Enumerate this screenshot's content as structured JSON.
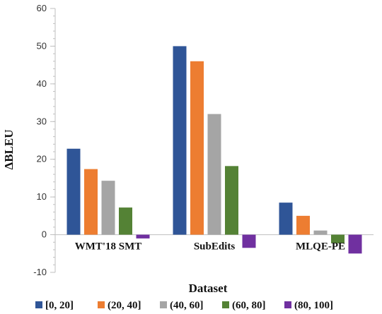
{
  "chart_data": {
    "type": "bar",
    "title": "",
    "xlabel": "Dataset",
    "ylabel": "ΔBLEU",
    "categories": [
      "WMT'18 SMT",
      "SubEdits",
      "MLQE-PE"
    ],
    "ylim": [
      -10,
      60
    ],
    "yticks": [
      "-10",
      "0",
      "10",
      "20",
      "30",
      "40",
      "50",
      "60"
    ],
    "grid": false,
    "legend_position": "bottom",
    "series": [
      {
        "name": "[0, 20]",
        "color": "#2f5597",
        "values": [
          22.8,
          50.0,
          8.5
        ]
      },
      {
        "name": "(20, 40]",
        "color": "#ed7d31",
        "values": [
          17.4,
          46.0,
          5.0
        ]
      },
      {
        "name": "(40, 60]",
        "color": "#a5a5a5",
        "values": [
          14.3,
          32.0,
          1.1
        ]
      },
      {
        "name": "(60, 80]",
        "color": "#548235",
        "values": [
          7.2,
          18.2,
          -2.3
        ]
      },
      {
        "name": "(80, 100]",
        "color": "#7030a0",
        "values": [
          -1.0,
          -3.5,
          -5.0
        ]
      }
    ]
  }
}
